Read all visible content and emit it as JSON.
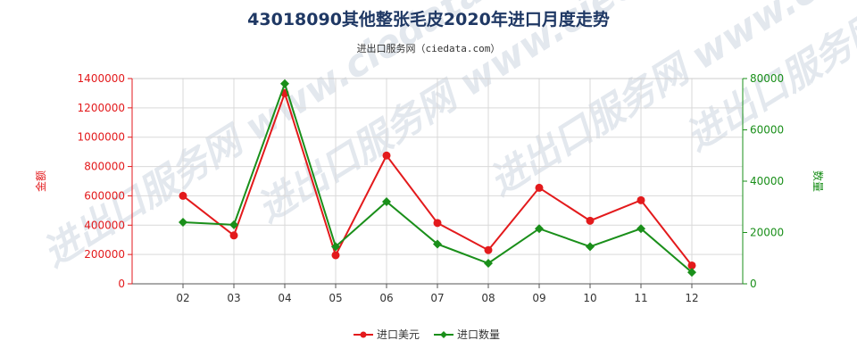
{
  "chart_data": {
    "type": "line",
    "title": "43018090其他整张毛皮2020年进口月度走势",
    "subtitle": "进出口服务网（ciedata.com）",
    "categories": [
      "02",
      "03",
      "04",
      "05",
      "06",
      "07",
      "08",
      "09",
      "10",
      "11",
      "12"
    ],
    "y_left": {
      "label": "金额",
      "range": [
        0,
        1400000
      ],
      "ticks": [
        "0",
        "200000",
        "400000",
        "600000",
        "800000",
        "1000000",
        "1200000",
        "1400000"
      ],
      "color": "#e31a1c"
    },
    "y_right": {
      "label": "数量",
      "range": [
        0,
        80000
      ],
      "ticks": [
        "0",
        "20000",
        "40000",
        "60000",
        "80000"
      ],
      "color": "#1a8f1a"
    },
    "series": [
      {
        "name": "进口美元",
        "axis": "left",
        "color": "#e31a1c",
        "values": [
          600000,
          330000,
          1300000,
          195000,
          875000,
          415000,
          230000,
          655000,
          430000,
          570000,
          125000
        ]
      },
      {
        "name": "进口数量",
        "axis": "right",
        "color": "#1a8f1a",
        "values": [
          24000,
          23000,
          78000,
          14500,
          32000,
          15500,
          8000,
          21500,
          14500,
          21500,
          4500
        ]
      }
    ],
    "grid": true,
    "legend_position": "bottom-center"
  },
  "watermark": {
    "text": "进出口服务网 www.ciedata.com"
  }
}
